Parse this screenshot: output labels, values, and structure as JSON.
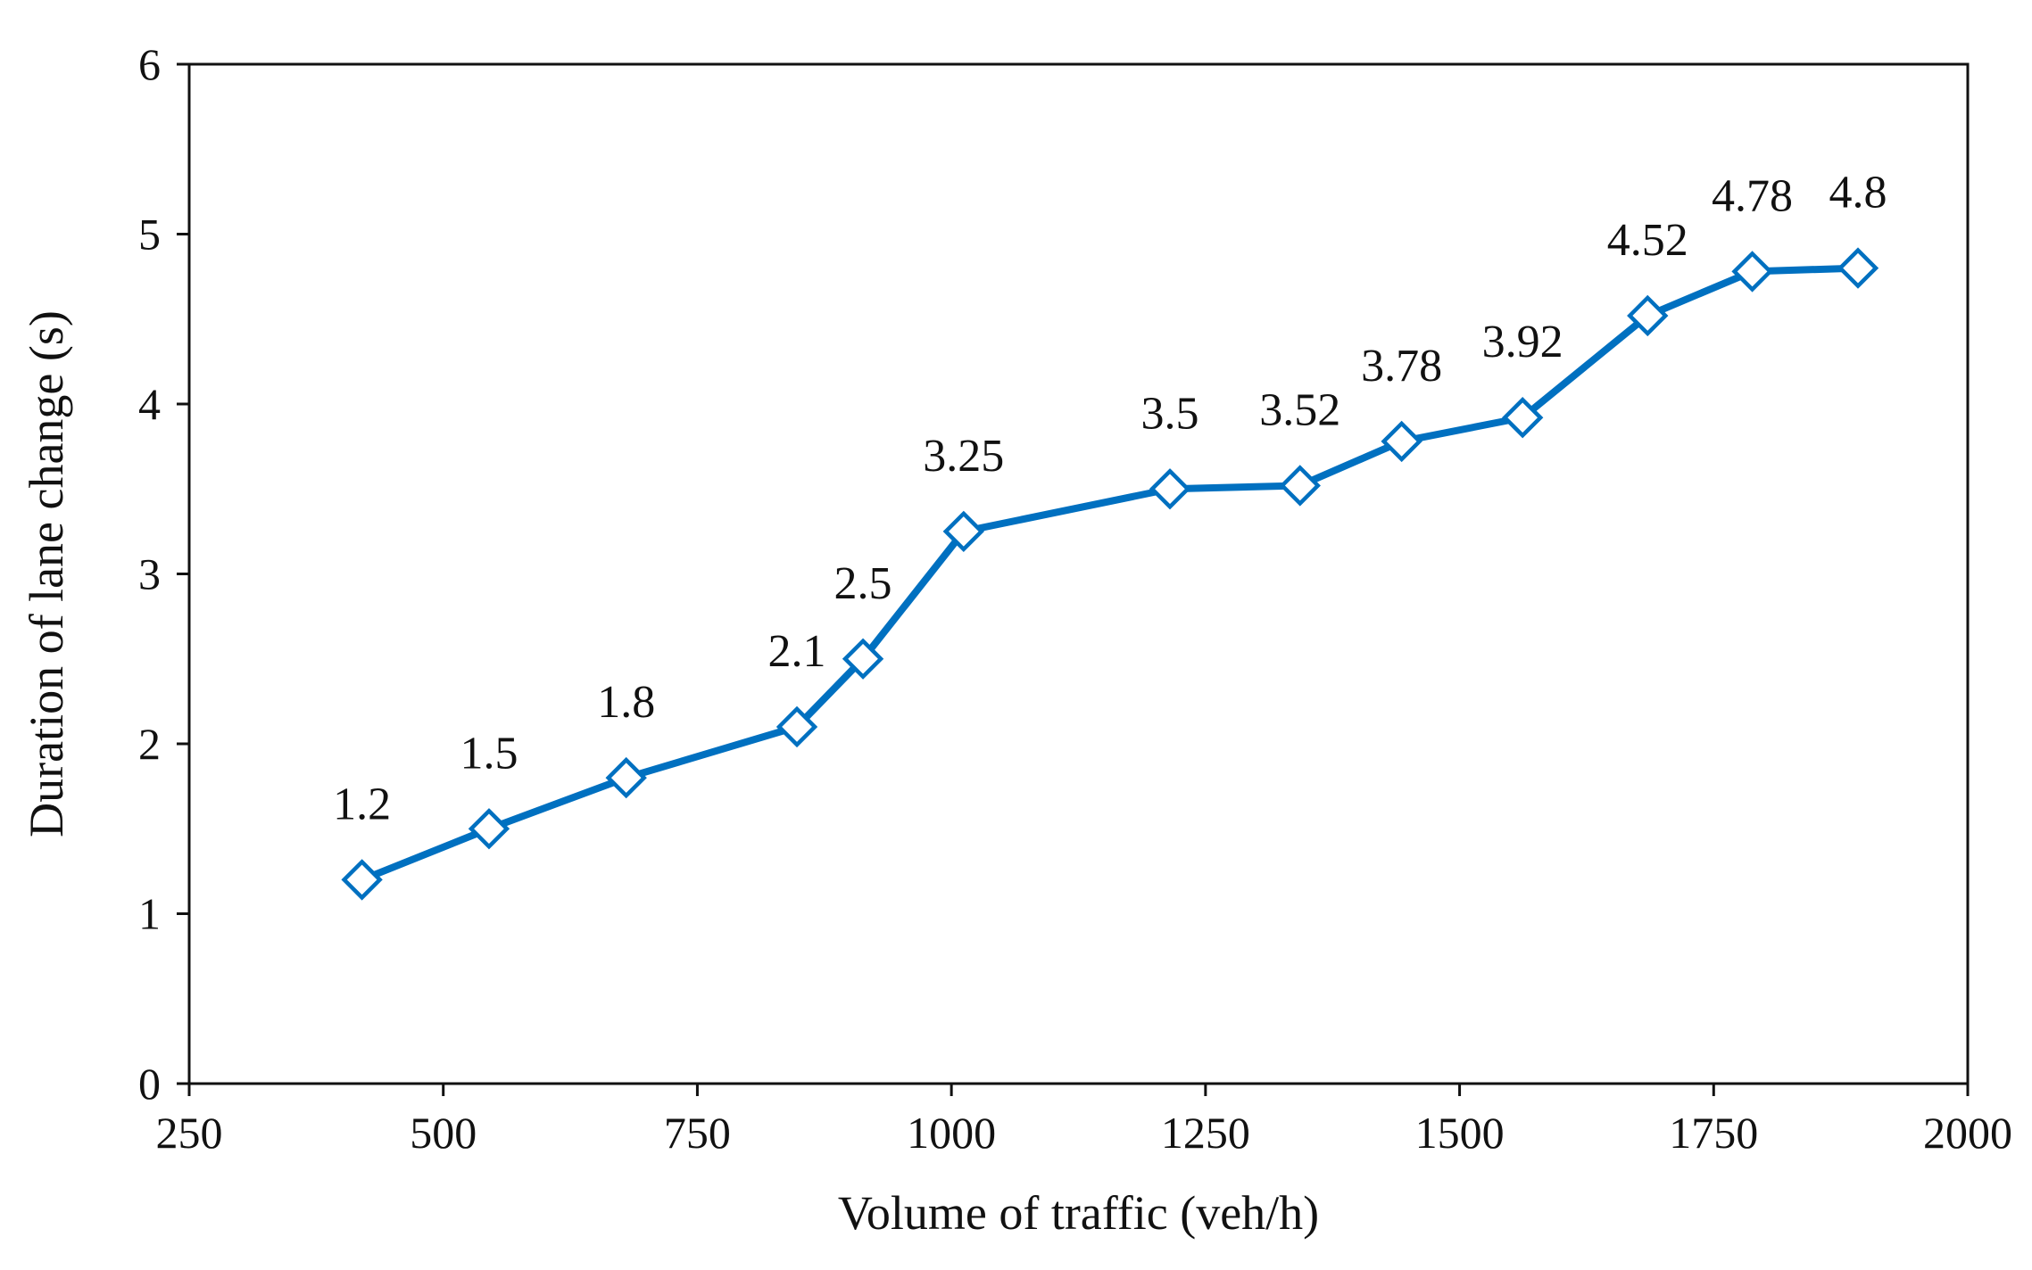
{
  "chart_data": {
    "type": "line",
    "title": "",
    "xlabel": "Volume of traffic (veh/h)",
    "ylabel": "Duration of lane change (s)",
    "xlim": [
      250,
      2000
    ],
    "ylim": [
      0,
      6
    ],
    "xticks": [
      250,
      500,
      750,
      1000,
      1250,
      1500,
      1750,
      2000
    ],
    "yticks": [
      0,
      1,
      2,
      3,
      4,
      5,
      6
    ],
    "grid": false,
    "legend": "none",
    "series_color": "#0070C0",
    "marker": "diamond-open",
    "series": [
      {
        "name": "Duration of lane change",
        "x": [
          420,
          545,
          680,
          848,
          913,
          1012,
          1215,
          1343,
          1443,
          1562,
          1685,
          1788,
          1892
        ],
        "y": [
          1.2,
          1.5,
          1.8,
          2.1,
          2.5,
          3.25,
          3.5,
          3.52,
          3.78,
          3.92,
          4.52,
          4.78,
          4.8
        ],
        "labels": [
          "1.2",
          "1.5",
          "1.8",
          "2.1",
          "2.5",
          "3.25",
          "3.5",
          "3.52",
          "3.78",
          "3.92",
          "4.52",
          "4.78",
          "4.8"
        ]
      }
    ]
  }
}
